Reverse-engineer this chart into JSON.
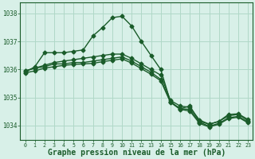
{
  "background_color": "#d8f0e8",
  "grid_color": "#b0d8c8",
  "line_color": "#1a5c2a",
  "marker_style": "D",
  "marker_size": 2.5,
  "line_width": 1.0,
  "xlabel": "Graphe pression niveau de la mer (hPa)",
  "xlabel_fontsize": 7,
  "xlim": [
    -0.5,
    23.5
  ],
  "ylim": [
    1033.5,
    1038.4
  ],
  "yticks": [
    1034,
    1035,
    1036,
    1037,
    1038
  ],
  "xticks": [
    0,
    1,
    2,
    3,
    4,
    5,
    6,
    7,
    8,
    9,
    10,
    11,
    12,
    13,
    14,
    15,
    16,
    17,
    18,
    19,
    20,
    21,
    22,
    23
  ],
  "series": [
    [
      1035.9,
      1036.1,
      1036.6,
      1036.6,
      1036.6,
      1036.65,
      1036.7,
      1037.2,
      1037.5,
      1037.85,
      1037.9,
      1037.55,
      1037.0,
      1036.5,
      1036.0,
      1034.85,
      1034.6,
      1034.7,
      1034.15,
      1034.05,
      1034.15,
      1034.4,
      1034.42,
      1034.22
    ],
    [
      1035.95,
      1036.05,
      1036.15,
      1036.25,
      1036.3,
      1036.35,
      1036.4,
      1036.45,
      1036.5,
      1036.55,
      1036.55,
      1036.4,
      1036.2,
      1036.0,
      1035.8,
      1034.9,
      1034.7,
      1034.65,
      1034.2,
      1034.05,
      1034.15,
      1034.35,
      1034.4,
      1034.18
    ],
    [
      1035.95,
      1036.05,
      1036.1,
      1036.2,
      1036.2,
      1036.25,
      1036.25,
      1036.3,
      1036.35,
      1036.4,
      1036.45,
      1036.3,
      1036.1,
      1035.9,
      1035.65,
      1034.85,
      1034.6,
      1034.58,
      1034.12,
      1033.98,
      1034.08,
      1034.28,
      1034.33,
      1034.13
    ],
    [
      1035.88,
      1035.95,
      1036.05,
      1036.1,
      1036.15,
      1036.18,
      1036.2,
      1036.22,
      1036.28,
      1036.33,
      1036.38,
      1036.23,
      1036.03,
      1035.83,
      1035.6,
      1034.83,
      1034.58,
      1034.52,
      1034.08,
      1033.95,
      1034.05,
      1034.25,
      1034.3,
      1034.1
    ]
  ]
}
